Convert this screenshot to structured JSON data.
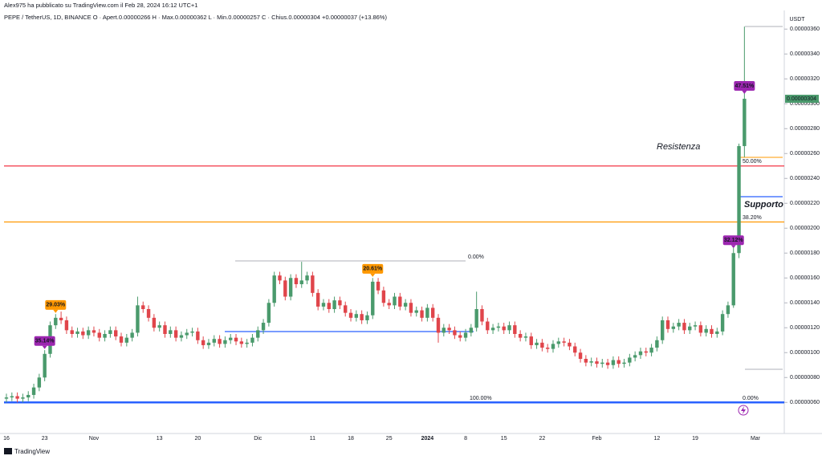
{
  "header": {
    "published": "Alex975 ha pubblicato su TradingView.com il Feb 28, 2024 16:12 UTC+1",
    "legend": "PEPE / TetherUS, 1D, BINANCE  O · Apert.0.00000266  H · Max.0.00000362  L · Min.0.00000257  C · Chius.0.00000304  +0.00000037 (+13.86%)"
  },
  "footer": {
    "brand": "TradingView"
  },
  "chart_data": {
    "type": "candlestick",
    "currency": "USDT",
    "up_color": "#4a9a6c",
    "down_color": "#e0454b",
    "categories": [
      "16",
      null,
      null,
      null,
      null,
      null,
      null,
      "23",
      null,
      null,
      null,
      null,
      null,
      null,
      null,
      null,
      "Nov",
      null,
      null,
      null,
      null,
      null,
      null,
      null,
      null,
      null,
      null,
      null,
      "13",
      null,
      null,
      null,
      null,
      null,
      null,
      "20",
      null,
      null,
      null,
      null,
      null,
      null,
      null,
      null,
      null,
      null,
      "Dic",
      null,
      null,
      null,
      null,
      null,
      null,
      null,
      null,
      null,
      "11",
      null,
      null,
      null,
      null,
      null,
      null,
      "18",
      null,
      null,
      null,
      null,
      null,
      null,
      "25",
      null,
      null,
      null,
      null,
      null,
      null,
      "2024",
      null,
      null,
      null,
      null,
      null,
      null,
      "8",
      null,
      null,
      null,
      null,
      null,
      null,
      "15",
      null,
      null,
      null,
      null,
      null,
      null,
      "22",
      null,
      null,
      null,
      null,
      null,
      null,
      null,
      null,
      null,
      "Feb",
      null,
      null,
      null,
      null,
      null,
      null,
      null,
      null,
      null,
      null,
      "12",
      null,
      null,
      null,
      null,
      null,
      null,
      "19",
      null,
      null,
      null,
      null,
      null,
      null,
      null,
      null,
      null,
      null,
      "Mar"
    ],
    "open": [
      6.3e-07,
      6.4e-07,
      6.5e-07,
      6.3e-07,
      6.4e-07,
      6.6e-07,
      7.2e-07,
      8e-07,
      9.9e-07,
      1.22e-06,
      1.28e-06,
      1.26e-06,
      1.18e-06,
      1.15e-06,
      1.17e-06,
      1.14e-06,
      1.18e-06,
      1.16e-06,
      1.12e-06,
      1.15e-06,
      1.18e-06,
      1.13e-06,
      1.08e-06,
      1.12e-06,
      1.16e-06,
      1.38e-06,
      1.35e-06,
      1.28e-06,
      1.2e-06,
      1.22e-06,
      1.15e-06,
      1.18e-06,
      1.12e-06,
      1.14e-06,
      1.16e-06,
      1.17e-06,
      1.1e-06,
      1.06e-06,
      1.08e-06,
      1.11e-06,
      1.07e-06,
      1.1e-06,
      1.12e-06,
      1.09e-06,
      1.07e-06,
      1.08e-06,
      1.12e-06,
      1.18e-06,
      1.24e-06,
      1.4e-06,
      1.62e-06,
      1.58e-06,
      1.45e-06,
      1.6e-06,
      1.55e-06,
      1.58e-06,
      1.62e-06,
      1.48e-06,
      1.37e-06,
      1.4e-06,
      1.35e-06,
      1.42e-06,
      1.38e-06,
      1.32e-06,
      1.28e-06,
      1.31e-06,
      1.26e-06,
      1.3e-06,
      1.57e-06,
      1.5e-06,
      1.4e-06,
      1.38e-06,
      1.45e-06,
      1.37e-06,
      1.4e-06,
      1.32e-06,
      1.34e-06,
      1.28e-06,
      1.36e-06,
      1.28e-06,
      1.16e-06,
      1.2e-06,
      1.18e-06,
      1.14e-06,
      1.12e-06,
      1.16e-06,
      1.2e-06,
      1.35e-06,
      1.25e-06,
      1.18e-06,
      1.2e-06,
      1.21e-06,
      1.18e-06,
      1.22e-06,
      1.15e-06,
      1.12e-06,
      1.13e-06,
      1.06e-06,
      1.08e-06,
      1.04e-06,
      1.03e-06,
      1.07e-06,
      1.09e-06,
      1.08e-06,
      1.05e-06,
      1e-06,
      9.5e-07,
      9.2e-07,
      9.3e-07,
      9.1e-07,
      9.2e-07,
      9e-07,
      9.4e-07,
      9.1e-07,
      9.2e-07,
      9.6e-07,
      9.8e-07,
      1.01e-06,
      1e-06,
      1.04e-06,
      1.1e-06,
      1.26e-06,
      1.19e-06,
      1.21e-06,
      1.24e-06,
      1.18e-06,
      1.21e-06,
      1.22e-06,
      1.16e-06,
      1.19e-06,
      1.15e-06,
      1.17e-06,
      1.31e-06,
      1.38e-06,
      1.8e-06,
      2.66e-06,
      null,
      null
    ],
    "high": [
      6.7e-07,
      6.8e-07,
      6.8e-07,
      6.7e-07,
      6.9e-07,
      7.5e-07,
      8.3e-07,
      1.02e-06,
      1.25e-06,
      1.31e-06,
      1.33e-06,
      1.29e-06,
      1.21e-06,
      1.2e-06,
      1.2e-06,
      1.21e-06,
      1.21e-06,
      1.19e-06,
      1.18e-06,
      1.21e-06,
      1.21e-06,
      1.16e-06,
      1.15e-06,
      1.19e-06,
      1.45e-06,
      1.41e-06,
      1.38e-06,
      1.31e-06,
      1.25e-06,
      1.25e-06,
      1.21e-06,
      1.21e-06,
      1.17e-06,
      1.19e-06,
      1.2e-06,
      1.2e-06,
      1.13e-06,
      1.11e-06,
      1.14e-06,
      1.14e-06,
      1.13e-06,
      1.15e-06,
      1.15e-06,
      1.12e-06,
      1.11e-06,
      1.15e-06,
      1.21e-06,
      1.27e-06,
      1.43e-06,
      1.65e-06,
      1.65e-06,
      1.61e-06,
      1.63e-06,
      1.63e-06,
      1.73e-06,
      1.65e-06,
      1.65e-06,
      1.51e-06,
      1.43e-06,
      1.43e-06,
      1.45e-06,
      1.45e-06,
      1.41e-06,
      1.35e-06,
      1.34e-06,
      1.34e-06,
      1.33e-06,
      1.6e-06,
      1.6e-06,
      1.53e-06,
      1.43e-06,
      1.48e-06,
      1.48e-06,
      1.43e-06,
      1.43e-06,
      1.37e-06,
      1.37e-06,
      1.39e-06,
      1.39e-06,
      1.31e-06,
      1.23e-06,
      1.23e-06,
      1.21e-06,
      1.17e-06,
      1.19e-06,
      1.23e-06,
      1.49e-06,
      1.38e-06,
      1.28e-06,
      1.23e-06,
      1.24e-06,
      1.24e-06,
      1.25e-06,
      1.25e-06,
      1.18e-06,
      1.16e-06,
      1.16e-06,
      1.11e-06,
      1.11e-06,
      1.07e-06,
      1.1e-06,
      1.12e-06,
      1.12e-06,
      1.11e-06,
      1.08e-06,
      1.03e-06,
      9.8e-07,
      9.6e-07,
      9.6e-07,
      9.5e-07,
      9.5e-07,
      9.7e-07,
      9.7e-07,
      9.5e-07,
      9.9e-07,
      1.01e-06,
      1.04e-06,
      1.04e-06,
      1.07e-06,
      1.13e-06,
      1.29e-06,
      1.29e-06,
      1.24e-06,
      1.27e-06,
      1.27e-06,
      1.24e-06,
      1.25e-06,
      1.25e-06,
      1.22e-06,
      1.22e-06,
      1.2e-06,
      1.34e-06,
      1.41e-06,
      1.84e-06,
      2.68e-06,
      3.62e-06,
      null,
      null
    ],
    "low": [
      6e-07,
      6.1e-07,
      6e-07,
      6e-07,
      6.1e-07,
      6.3e-07,
      6.9e-07,
      7.7e-07,
      9.6e-07,
      1.19e-06,
      1.23e-06,
      1.15e-06,
      1.12e-06,
      1.12e-06,
      1.11e-06,
      1.11e-06,
      1.13e-06,
      1.09e-06,
      1.09e-06,
      1.12e-06,
      1.1e-06,
      1.05e-06,
      1.05e-06,
      1.09e-06,
      1.13e-06,
      1.32e-06,
      1.25e-06,
      1.17e-06,
      1.17e-06,
      1.12e-06,
      1.12e-06,
      1.09e-06,
      1.09e-06,
      1.11e-06,
      1.13e-06,
      1.07e-06,
      1.03e-06,
      1.03e-06,
      1.05e-06,
      1.04e-06,
      1.04e-06,
      1.07e-06,
      1.06e-06,
      1.04e-06,
      1.04e-06,
      1.05e-06,
      1.09e-06,
      1.15e-06,
      1.21e-06,
      1.37e-06,
      1.55e-06,
      1.42e-06,
      1.42e-06,
      1.52e-06,
      1.52e-06,
      1.55e-06,
      1.45e-06,
      1.34e-06,
      1.34e-06,
      1.32e-06,
      1.32e-06,
      1.35e-06,
      1.29e-06,
      1.25e-06,
      1.25e-06,
      1.23e-06,
      1.23e-06,
      1.27e-06,
      1.47e-06,
      1.37e-06,
      1.35e-06,
      1.35e-06,
      1.34e-06,
      1.34e-06,
      1.29e-06,
      1.29e-06,
      1.25e-06,
      1.25e-06,
      1.25e-06,
      1.08e-06,
      1.13e-06,
      1.15e-06,
      1.11e-06,
      1.09e-06,
      1.09e-06,
      1.13e-06,
      1.17e-06,
      1.22e-06,
      1.15e-06,
      1.15e-06,
      1.17e-06,
      1.15e-06,
      1.15e-06,
      1.12e-06,
      1.09e-06,
      1.09e-06,
      1.03e-06,
      1.03e-06,
      1.01e-06,
      1e-06,
      1e-06,
      1.04e-06,
      1.05e-06,
      1.02e-06,
      9.7e-07,
      9.2e-07,
      8.9e-07,
      8.9e-07,
      8.8e-07,
      8.8e-07,
      8.7e-07,
      8.7e-07,
      8.8e-07,
      8.8e-07,
      8.9e-07,
      9.3e-07,
      9.5e-07,
      9.7e-07,
      9.7e-07,
      1.01e-06,
      1.07e-06,
      1.16e-06,
      1.16e-06,
      1.18e-06,
      1.15e-06,
      1.15e-06,
      1.18e-06,
      1.13e-06,
      1.13e-06,
      1.12e-06,
      1.12e-06,
      1.14e-06,
      1.28e-06,
      1.36e-06,
      1.76e-06,
      2.57e-06,
      null,
      null
    ],
    "close": [
      6.4e-07,
      6.5e-07,
      6.3e-07,
      6.4e-07,
      6.6e-07,
      7.2e-07,
      8e-07,
      9.9e-07,
      1.22e-06,
      1.28e-06,
      1.26e-06,
      1.18e-06,
      1.15e-06,
      1.17e-06,
      1.14e-06,
      1.18e-06,
      1.16e-06,
      1.12e-06,
      1.15e-06,
      1.18e-06,
      1.13e-06,
      1.08e-06,
      1.12e-06,
      1.16e-06,
      1.38e-06,
      1.35e-06,
      1.28e-06,
      1.2e-06,
      1.22e-06,
      1.15e-06,
      1.18e-06,
      1.12e-06,
      1.14e-06,
      1.16e-06,
      1.17e-06,
      1.1e-06,
      1.06e-06,
      1.08e-06,
      1.11e-06,
      1.07e-06,
      1.1e-06,
      1.12e-06,
      1.09e-06,
      1.07e-06,
      1.08e-06,
      1.12e-06,
      1.18e-06,
      1.24e-06,
      1.4e-06,
      1.62e-06,
      1.58e-06,
      1.45e-06,
      1.6e-06,
      1.55e-06,
      1.58e-06,
      1.62e-06,
      1.48e-06,
      1.37e-06,
      1.4e-06,
      1.35e-06,
      1.42e-06,
      1.38e-06,
      1.32e-06,
      1.28e-06,
      1.31e-06,
      1.26e-06,
      1.3e-06,
      1.57e-06,
      1.5e-06,
      1.4e-06,
      1.38e-06,
      1.45e-06,
      1.37e-06,
      1.4e-06,
      1.32e-06,
      1.34e-06,
      1.28e-06,
      1.36e-06,
      1.28e-06,
      1.16e-06,
      1.2e-06,
      1.18e-06,
      1.14e-06,
      1.12e-06,
      1.16e-06,
      1.2e-06,
      1.35e-06,
      1.25e-06,
      1.18e-06,
      1.2e-06,
      1.21e-06,
      1.18e-06,
      1.22e-06,
      1.15e-06,
      1.12e-06,
      1.13e-06,
      1.06e-06,
      1.08e-06,
      1.04e-06,
      1.03e-06,
      1.07e-06,
      1.09e-06,
      1.08e-06,
      1.05e-06,
      1e-06,
      9.5e-07,
      9.2e-07,
      9.3e-07,
      9.1e-07,
      9.2e-07,
      9e-07,
      9.4e-07,
      9.1e-07,
      9.2e-07,
      9.6e-07,
      9.8e-07,
      1.01e-06,
      1e-06,
      1.04e-06,
      1.1e-06,
      1.26e-06,
      1.19e-06,
      1.21e-06,
      1.24e-06,
      1.18e-06,
      1.21e-06,
      1.22e-06,
      1.16e-06,
      1.19e-06,
      1.15e-06,
      1.17e-06,
      1.31e-06,
      1.38e-06,
      1.8e-06,
      2.66e-06,
      3.04e-06,
      null,
      null
    ],
    "ylim": [
      3.5e-07,
      3.75e-06
    ],
    "yticks": [
      {
        "value": 6e-07,
        "label": "0.00000060"
      },
      {
        "value": 8e-07,
        "label": "0.00000080"
      },
      {
        "value": 1e-06,
        "label": "0.00000100"
      },
      {
        "value": 1.2e-06,
        "label": "0.00000120"
      },
      {
        "value": 1.4e-06,
        "label": "0.00000140"
      },
      {
        "value": 1.6e-06,
        "label": "0.00000160"
      },
      {
        "value": 1.8e-06,
        "label": "0.00000180"
      },
      {
        "value": 2e-06,
        "label": "0.00000200"
      },
      {
        "value": 2.2e-06,
        "label": "0.00000220"
      },
      {
        "value": 2.4e-06,
        "label": "0.00000240"
      },
      {
        "value": 2.6e-06,
        "label": "0.00000260"
      },
      {
        "value": 2.8e-06,
        "label": "0.00000280"
      },
      {
        "value": 3e-06,
        "label": "0.00000300"
      },
      {
        "value": 3.2e-06,
        "label": "0.00000320"
      },
      {
        "value": 3.4e-06,
        "label": "0.00000340"
      },
      {
        "value": 3.6e-06,
        "label": "0.00000360"
      }
    ],
    "last_price": {
      "value": 3.04e-06,
      "label": "0.00000304"
    },
    "grid": false,
    "levels": [
      {
        "value": 2.5e-06,
        "color": "#f23645"
      },
      {
        "value": 2.05e-06,
        "color": "#ff9800"
      },
      {
        "value": 6e-07,
        "color": "#2962ff"
      }
    ],
    "callouts": [
      {
        "text": "35.14%",
        "at": 7,
        "color": "#9c27b0"
      },
      {
        "text": "29.03%",
        "at": 9,
        "color": "#ff9800"
      },
      {
        "text": "20.61%",
        "at": 67,
        "color": "#ff9800"
      },
      {
        "text": "32.12%",
        "at": 133,
        "color": "#9c27b0"
      },
      {
        "text": "47.51%",
        "at": 135,
        "color": "#9c27b0"
      }
    ],
    "annotations": {
      "resistance": "Resistenza",
      "support": "Supporto",
      "fib_0_top": "0.00%",
      "fib_100": "100.00%",
      "fib_0_bottom": "0.00%",
      "fib_50": "50.00%",
      "fib_382": "38.20%"
    }
  }
}
